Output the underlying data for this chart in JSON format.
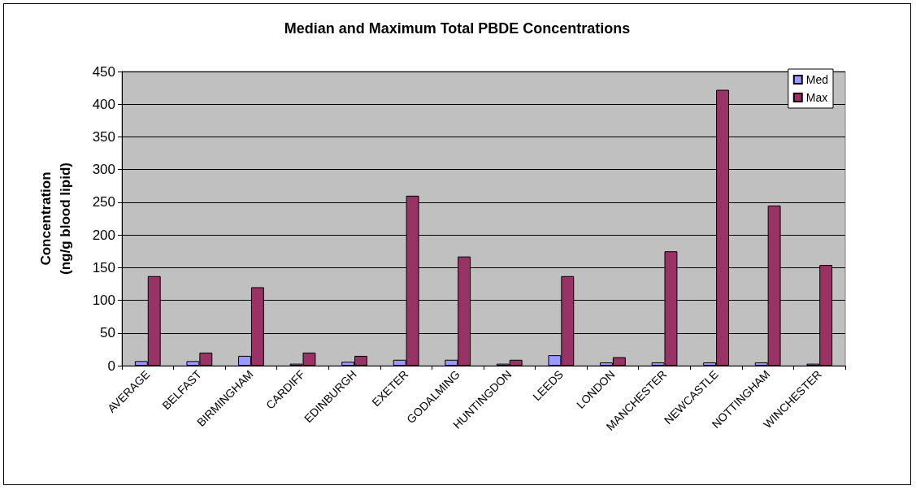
{
  "chart_data": {
    "type": "bar",
    "title": "Median and Maximum Total PBDE Concentrations",
    "ylabel": "Concentration\n(ng/g blood lipid)",
    "categories": [
      "AVERAGE",
      "BELFAST",
      "BIRMINGHAM",
      "CARDIFF",
      "EDINBURGH",
      "EXETER",
      "GODALMING",
      "HUNTINGDON",
      "LEEDS",
      "LONDON",
      "MANCHESTER",
      "NEWCASTLE",
      "NOTTINGHAM",
      "WINCHESTER"
    ],
    "series": [
      {
        "name": "Med",
        "color": "#9999ff",
        "values": [
          7,
          7,
          15,
          3,
          6,
          9,
          9,
          3,
          16,
          5,
          5,
          5,
          5,
          3
        ]
      },
      {
        "name": "Max",
        "color": "#993366",
        "values": [
          137,
          20,
          120,
          20,
          15,
          260,
          167,
          9,
          137,
          13,
          175,
          422,
          245,
          154
        ]
      }
    ],
    "ylim": [
      0,
      450
    ],
    "yticks": [
      0,
      50,
      100,
      150,
      200,
      250,
      300,
      350,
      400,
      450
    ],
    "grid": "y",
    "legend": "top right"
  }
}
